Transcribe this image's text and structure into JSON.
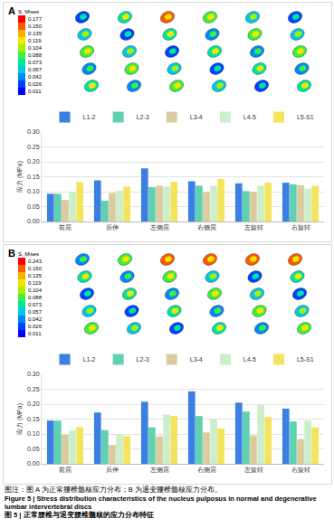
{
  "chart_data": [
    {
      "type": "bar",
      "title": "A",
      "categories": [
        "前屈",
        "后伸",
        "左侧屈",
        "右侧屈",
        "左旋转",
        "右旋转"
      ],
      "series": [
        {
          "name": "L1-2",
          "color": "#3b7fe3",
          "values": [
            0.093,
            0.138,
            0.178,
            0.135,
            0.128,
            0.13
          ]
        },
        {
          "name": "L2-3",
          "color": "#5ed1b1",
          "values": [
            0.093,
            0.07,
            0.115,
            0.12,
            0.102,
            0.125
          ]
        },
        {
          "name": "L3-4",
          "color": "#dccba0",
          "values": [
            0.072,
            0.095,
            0.12,
            0.098,
            0.1,
            0.122
          ]
        },
        {
          "name": "L4-5",
          "color": "#cdeecb",
          "values": [
            0.098,
            0.103,
            0.117,
            0.12,
            0.12,
            0.11
          ]
        },
        {
          "name": "L5-S1",
          "color": "#f4e35c",
          "values": [
            0.132,
            0.117,
            0.133,
            0.143,
            0.13,
            0.12
          ]
        }
      ],
      "y_label": "应力 (MPa)",
      "ylim": [
        0,
        0.3
      ],
      "yticks": [
        {
          "value": 0,
          "label": "0.00"
        },
        {
          "value": 0.05,
          "label": "0.05"
        },
        {
          "value": 0.1,
          "label": "0.10"
        },
        {
          "value": 0.15,
          "label": "0.15"
        },
        {
          "value": 0.2,
          "label": "0.20"
        },
        {
          "value": 0.25,
          "label": "0.25"
        },
        {
          "value": 0.3,
          "label": "0.30"
        }
      ],
      "grid": true,
      "legend": "top"
    },
    {
      "type": "bar",
      "title": "B",
      "categories": [
        "前屈",
        "后伸",
        "左侧屈",
        "右侧屈",
        "左旋转",
        "右旋转"
      ],
      "series": [
        {
          "name": "L1-2",
          "color": "#3b7fe3",
          "values": [
            0.145,
            0.172,
            0.208,
            0.243,
            0.205,
            0.185
          ]
        },
        {
          "name": "L2-3",
          "color": "#5ed1b1",
          "values": [
            0.145,
            0.113,
            0.122,
            0.16,
            0.175,
            0.142
          ]
        },
        {
          "name": "L3-4",
          "color": "#dccba0",
          "values": [
            0.097,
            0.063,
            0.093,
            0.105,
            0.095,
            0.083
          ]
        },
        {
          "name": "L4-5",
          "color": "#cdeecb",
          "values": [
            0.112,
            0.1,
            0.165,
            0.15,
            0.198,
            0.145
          ]
        },
        {
          "name": "L5-S1",
          "color": "#f4e35c",
          "values": [
            0.123,
            0.093,
            0.16,
            0.118,
            0.157,
            0.122
          ]
        }
      ],
      "y_label": "应力 (MPa)",
      "ylim": [
        0,
        0.3
      ],
      "yticks": [
        {
          "value": 0,
          "label": "0.00"
        },
        {
          "value": 0.05,
          "label": "0.05"
        },
        {
          "value": 0.1,
          "label": "0.10"
        },
        {
          "value": 0.15,
          "label": "0.15"
        },
        {
          "value": 0.2,
          "label": "0.20"
        },
        {
          "value": 0.25,
          "label": "0.25"
        },
        {
          "value": 0.3,
          "label": "0.30"
        }
      ],
      "grid": true,
      "legend": "top"
    }
  ],
  "contour_legends": [
    {
      "title": "S, Mises",
      "labels": [
        "0.177",
        "0.150",
        "0.135",
        "0.119",
        "0.104",
        "0.088",
        "0.073",
        "0.057",
        "0.042",
        "0.026",
        "0.011"
      ]
    },
    {
      "title": "S, Mises",
      "labels": [
        "0.243",
        "0.150",
        "0.135",
        "0.119",
        "0.104",
        "0.088",
        "0.073",
        "0.057",
        "0.042",
        "0.026",
        "0.011"
      ]
    }
  ],
  "caption": {
    "note": "图注：图 A 为正常腰椎髓核应力分布；B 为退变腰椎髓核应力分布。",
    "title_cn": "图 5 | 正常腰椎与退变腰椎髓核的应力分布特征",
    "title_en": "Figure 5 | Stress distribution characteristics of the nucleus pulposus in normal and degenerative lumbar intervertebral discs"
  }
}
